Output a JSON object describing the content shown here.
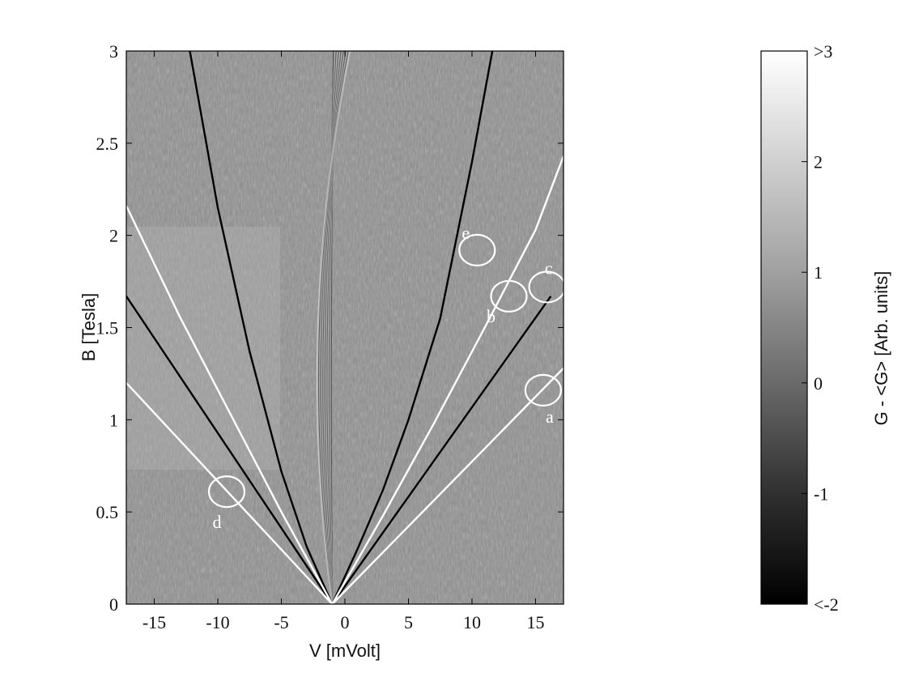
{
  "chart_data": {
    "type": "heatmap",
    "xlabel": "V [mVolt]",
    "ylabel": "B [Tesla]",
    "xlim": [
      -17.2,
      17.2
    ],
    "ylim": [
      0,
      3
    ],
    "x_ticks": [
      -15,
      -10,
      -5,
      0,
      5,
      10,
      15
    ],
    "y_ticks": [
      0,
      0.5,
      1,
      1.5,
      2,
      2.5,
      3
    ],
    "grid": false,
    "colorbar": {
      "label": "G - <G> [Arb. units]",
      "range": [
        -2,
        3
      ],
      "ticks": [
        {
          "value": 3,
          "label": ">3"
        },
        {
          "value": 2,
          "label": "2"
        },
        {
          "value": 1,
          "label": "1"
        },
        {
          "value": 0,
          "label": "0"
        },
        {
          "value": -1,
          "label": "-1"
        },
        {
          "value": -2,
          "label": "<-2"
        }
      ],
      "colormap": "grayscale"
    },
    "origin": {
      "V": -1,
      "B": 0
    },
    "curves": [
      {
        "color": "#000000",
        "shape": "parabola",
        "x": [
          -12.2,
          -10,
          -7.5,
          -5,
          -3,
          -1,
          1,
          3,
          5,
          7.5,
          10,
          11.6
        ],
        "y": [
          3,
          2.15,
          1.37,
          0.72,
          0.31,
          0,
          0.3,
          0.62,
          1.0,
          1.55,
          2.4,
          3
        ]
      },
      {
        "color": "#000000",
        "shape": "line",
        "x": [
          -17.2,
          -1,
          16.2
        ],
        "y": [
          1.67,
          0,
          1.67
        ]
      },
      {
        "color": "#ffffff",
        "shape": "curve",
        "x": [
          -17.2,
          -13,
          -9,
          -5,
          -1,
          3,
          7,
          11,
          15,
          17.2
        ],
        "y": [
          2.16,
          1.56,
          1.03,
          0.5,
          0,
          0.48,
          0.98,
          1.5,
          2.03,
          2.43
        ]
      },
      {
        "color": "#ffffff",
        "shape": "line",
        "x": [
          -17.2,
          -1,
          17.2
        ],
        "y": [
          1.2,
          0,
          1.28
        ]
      }
    ],
    "markers": [
      {
        "label": "a",
        "V": 15.6,
        "B": 1.16
      },
      {
        "label": "b",
        "V": 12.9,
        "B": 1.67
      },
      {
        "label": "c",
        "V": 15.9,
        "B": 1.72
      },
      {
        "label": "d",
        "V": -9.3,
        "B": 0.61
      },
      {
        "label": "e",
        "V": 10.4,
        "B": 1.92
      }
    ]
  }
}
